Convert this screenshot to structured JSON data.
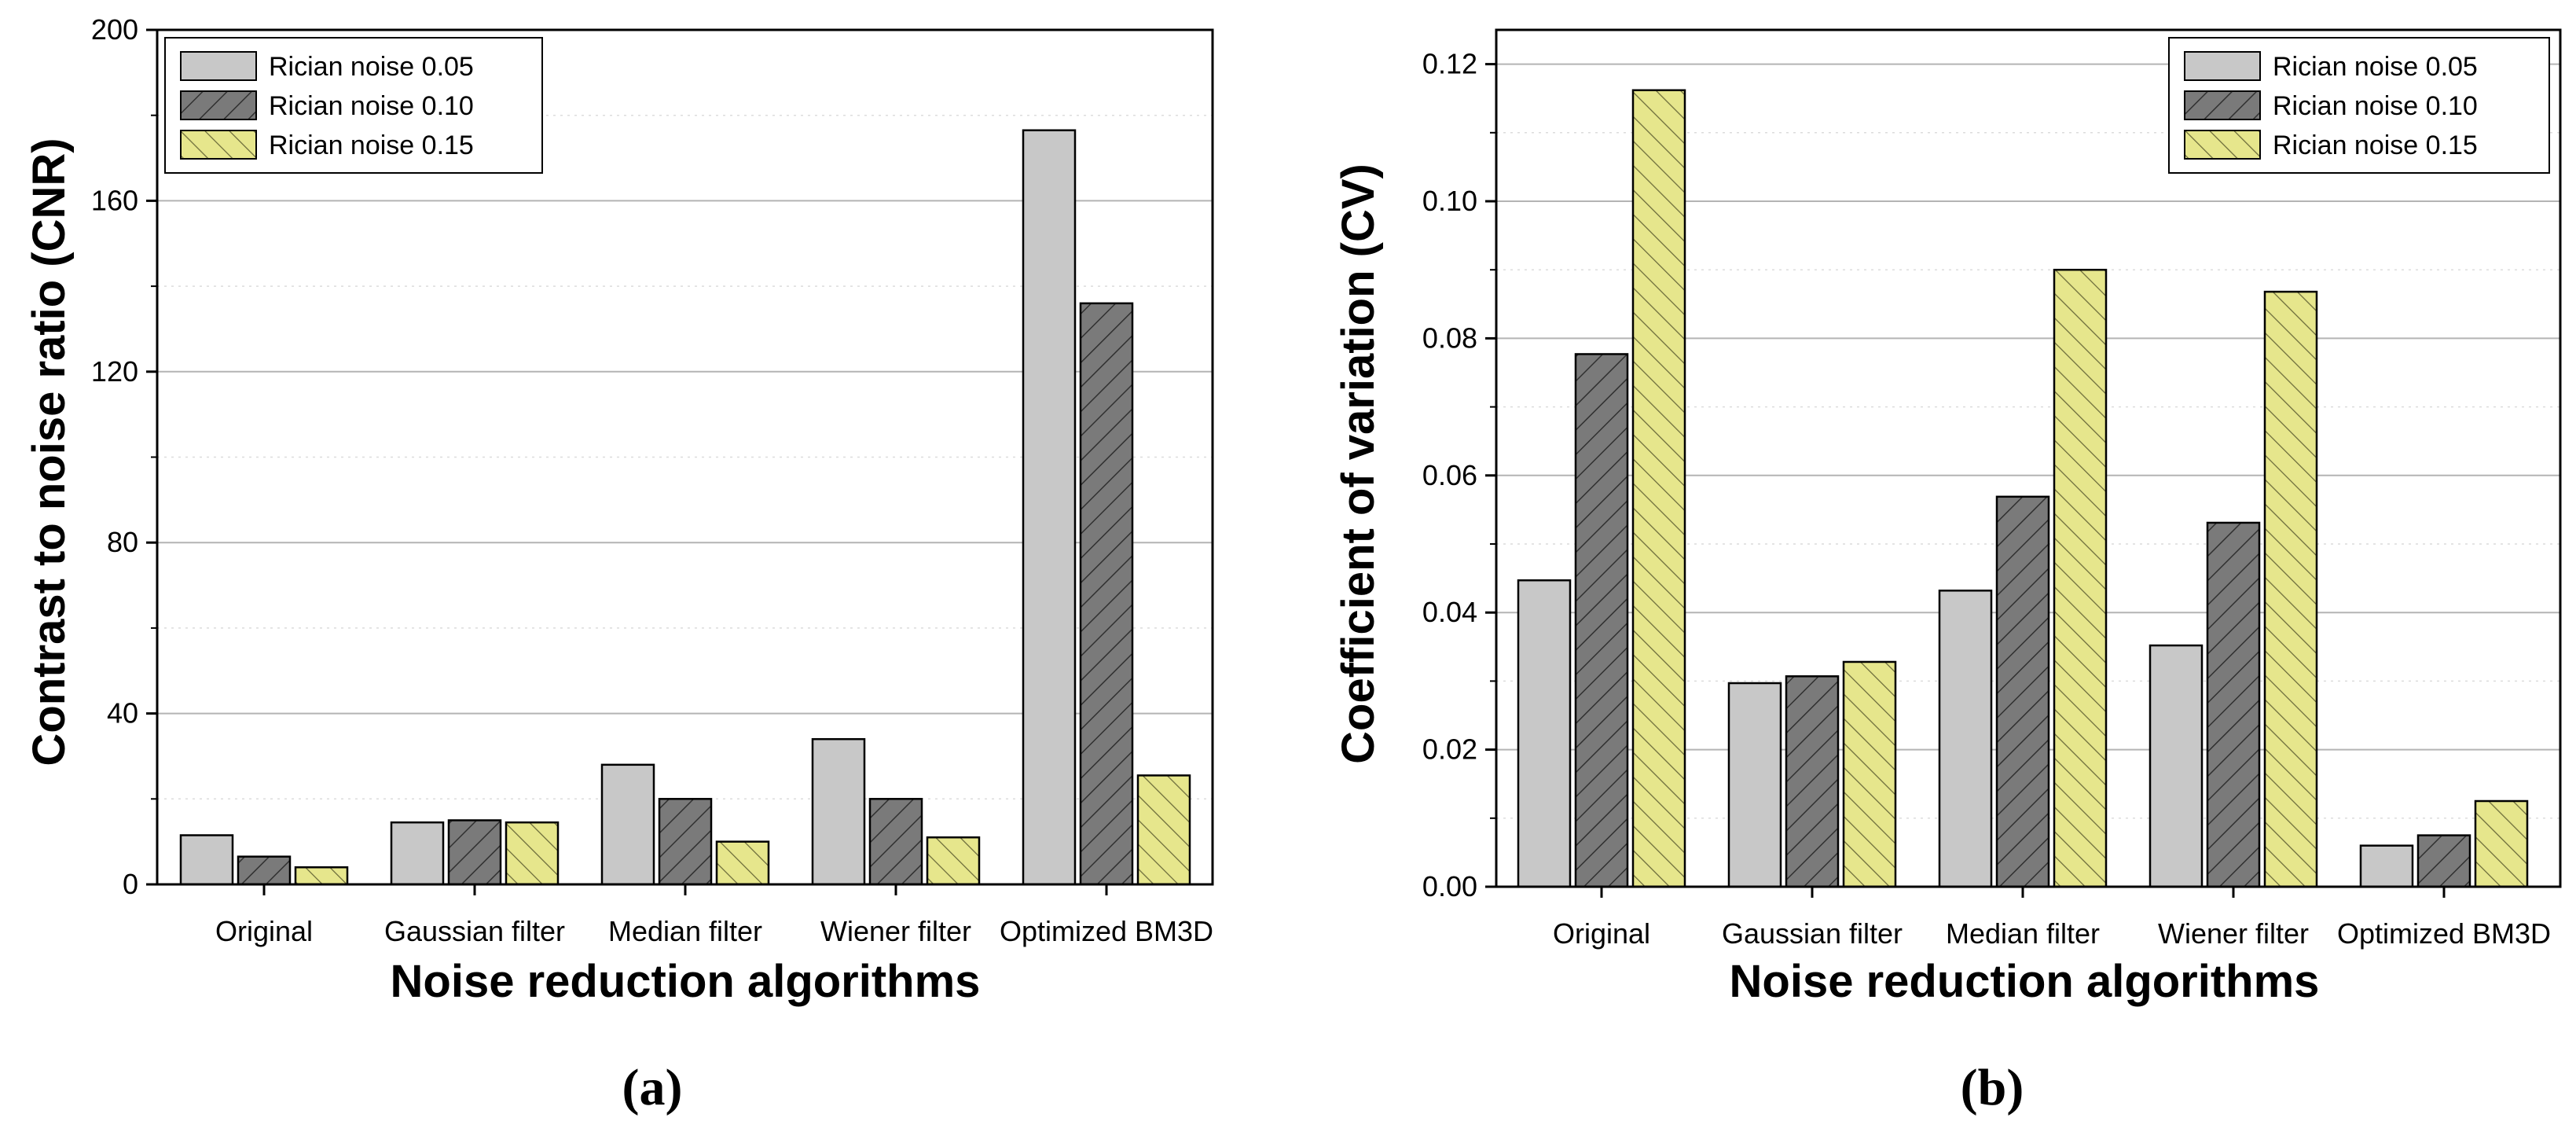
{
  "chart_data": [
    {
      "type": "bar",
      "panel_label": "(a)",
      "categories": [
        "Original",
        "Gaussian filter",
        "Median filter",
        "Wiener filter",
        "Optimized BM3D"
      ],
      "series": [
        {
          "name": "Rician noise 0.05",
          "values": [
            11.5,
            14.5,
            28,
            34,
            176.5
          ]
        },
        {
          "name": "Rician noise 0.10",
          "values": [
            6.5,
            15,
            20,
            20,
            136
          ]
        },
        {
          "name": "Rician noise 0.15",
          "values": [
            4,
            14.5,
            10,
            11,
            25.5
          ]
        }
      ],
      "xlabel": "Noise reduction algorithms",
      "ylabel": "Contrast to noise ratio (CNR)",
      "ylim": [
        0,
        200
      ],
      "yticks": [
        "0",
        "40",
        "80",
        "120",
        "160",
        "200"
      ],
      "legend_position": "top-left",
      "grid": true
    },
    {
      "type": "bar",
      "panel_label": "(b)",
      "categories": [
        "Original",
        "Gaussian filter",
        "Median filter",
        "Wiener filter",
        "Optimized BM3D"
      ],
      "series": [
        {
          "name": "Rician noise 0.05",
          "values": [
            0.0447,
            0.0297,
            0.0432,
            0.0352,
            0.006
          ]
        },
        {
          "name": "Rician noise 0.10",
          "values": [
            0.0777,
            0.0307,
            0.0569,
            0.0531,
            0.0075
          ]
        },
        {
          "name": "Rician noise 0.15",
          "values": [
            0.1162,
            0.0328,
            0.09,
            0.0868,
            0.0125
          ]
        }
      ],
      "xlabel": "Noise reduction algorithms",
      "ylabel": "Coefficient of variation (CV)",
      "ylim": [
        0,
        0.125
      ],
      "yticks": [
        "0.00",
        "0.02",
        "0.04",
        "0.06",
        "0.08",
        "0.10",
        "0.12"
      ],
      "legend_position": "top-right",
      "grid": true
    }
  ],
  "colors": {
    "series_fills": [
      "#c8c8c8",
      "#7a7a7a",
      "#e6e68c"
    ],
    "grid": "#b4b4b4",
    "axis": "#000000"
  }
}
